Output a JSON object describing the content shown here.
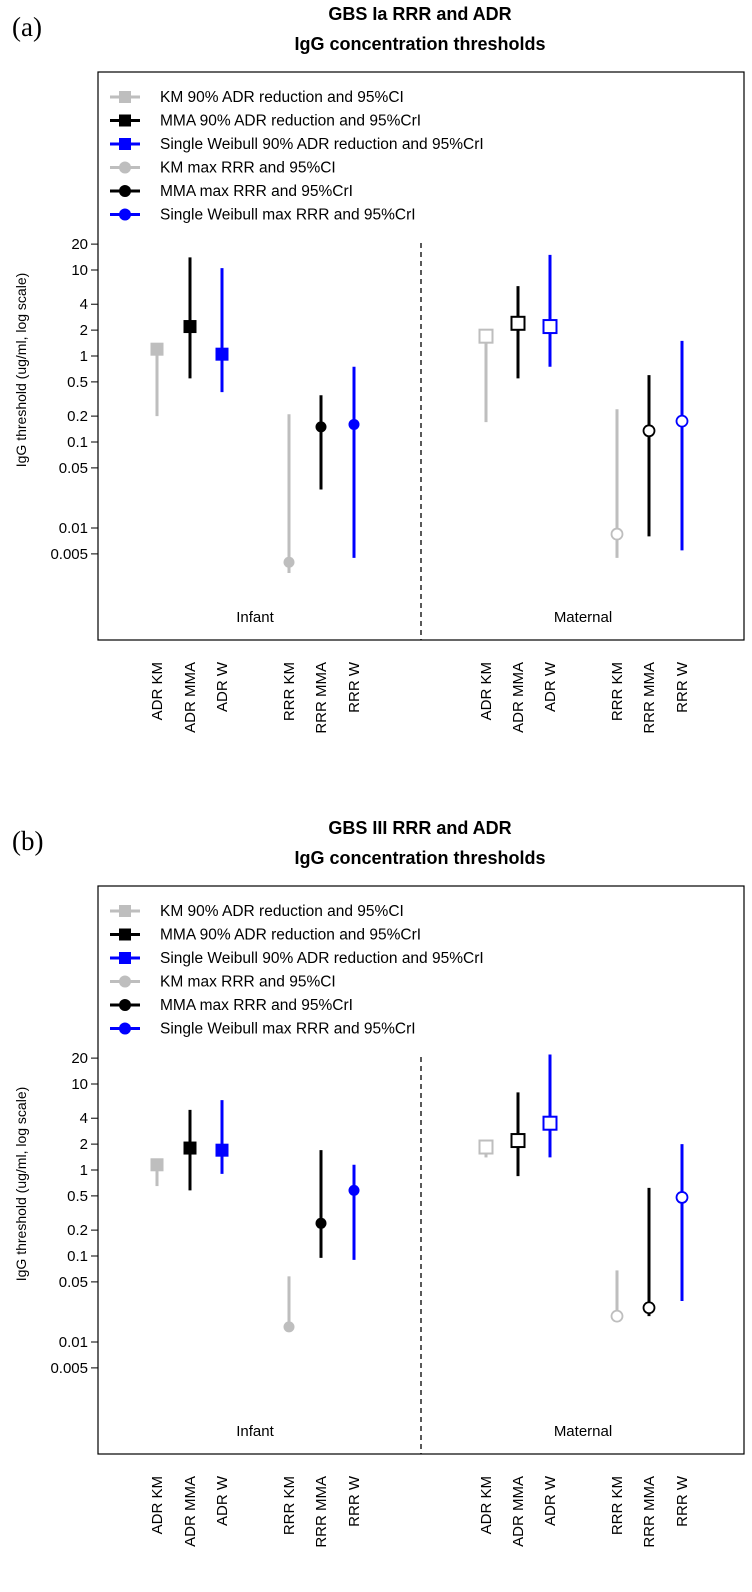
{
  "chart_data": [
    {
      "panel_label": "(a)",
      "type": "scatter",
      "title": "GBS Ia RRR and ADR",
      "subtitle": "IgG concentration thresholds",
      "ylabel": "IgG threshold (ug/ml, log scale)",
      "yscale": "log",
      "ylim": [
        0.0005,
        50
      ],
      "yticks": [
        {
          "value": 20,
          "label": "20"
        },
        {
          "value": 10,
          "label": "10"
        },
        {
          "value": 4,
          "label": "4"
        },
        {
          "value": 2,
          "label": "2"
        },
        {
          "value": 1,
          "label": "1"
        },
        {
          "value": 0.5,
          "label": "0.5"
        },
        {
          "value": 0.2,
          "label": "0.2"
        },
        {
          "value": 0.1,
          "label": "0.1"
        },
        {
          "value": 0.05,
          "label": "0.05"
        },
        {
          "value": 0.01,
          "label": "0.01"
        },
        {
          "value": 0.005,
          "label": "0.005"
        }
      ],
      "groups": [
        "Infant",
        "Maternal"
      ],
      "legend": [
        {
          "label": "KM 90% ADR reduction and 95%CI",
          "color": "#bebebe",
          "marker": "square"
        },
        {
          "label": "MMA 90% ADR reduction and 95%CrI",
          "color": "#000000",
          "marker": "square"
        },
        {
          "label": "Single Weibull 90% ADR reduction and 95%CrI",
          "color": "#0000ff",
          "marker": "square"
        },
        {
          "label": "KM max RRR and 95%CI",
          "color": "#bebebe",
          "marker": "circle"
        },
        {
          "label": "MMA max RRR and 95%CrI",
          "color": "#000000",
          "marker": "circle"
        },
        {
          "label": "Single Weibull max RRR and 95%CrI",
          "color": "#0000ff",
          "marker": "circle"
        }
      ],
      "points": [
        {
          "group": "Infant",
          "category": "ADR KM",
          "color": "#bebebe",
          "marker": "square",
          "filled": true,
          "value": 1.2,
          "lower": 0.2,
          "upper": 1.2
        },
        {
          "group": "Infant",
          "category": "ADR MMA",
          "color": "#000000",
          "marker": "square",
          "filled": true,
          "value": 2.2,
          "lower": 0.55,
          "upper": 14
        },
        {
          "group": "Infant",
          "category": "ADR W",
          "color": "#0000ff",
          "marker": "square",
          "filled": true,
          "value": 1.05,
          "lower": 0.38,
          "upper": 10.5
        },
        {
          "group": "Infant",
          "category": "RRR KM",
          "color": "#bebebe",
          "marker": "circle",
          "filled": true,
          "value": 0.004,
          "lower": 0.003,
          "upper": 0.21
        },
        {
          "group": "Infant",
          "category": "RRR MMA",
          "color": "#000000",
          "marker": "circle",
          "filled": true,
          "value": 0.15,
          "lower": 0.028,
          "upper": 0.35
        },
        {
          "group": "Infant",
          "category": "RRR W",
          "color": "#0000ff",
          "marker": "circle",
          "filled": true,
          "value": 0.16,
          "lower": 0.0045,
          "upper": 0.75
        },
        {
          "group": "Maternal",
          "category": "ADR KM",
          "color": "#bebebe",
          "marker": "square",
          "filled": false,
          "value": 1.7,
          "lower": 0.17,
          "upper": 1.7
        },
        {
          "group": "Maternal",
          "category": "ADR MMA",
          "color": "#000000",
          "marker": "square",
          "filled": false,
          "value": 2.4,
          "lower": 0.55,
          "upper": 6.5
        },
        {
          "group": "Maternal",
          "category": "ADR W",
          "color": "#0000ff",
          "marker": "square",
          "filled": false,
          "value": 2.2,
          "lower": 0.75,
          "upper": 15
        },
        {
          "group": "Maternal",
          "category": "RRR KM",
          "color": "#bebebe",
          "marker": "circle",
          "filled": false,
          "value": 0.0085,
          "lower": 0.0045,
          "upper": 0.24
        },
        {
          "group": "Maternal",
          "category": "RRR MMA",
          "color": "#000000",
          "marker": "circle",
          "filled": false,
          "value": 0.135,
          "lower": 0.008,
          "upper": 0.6
        },
        {
          "group": "Maternal",
          "category": "RRR W",
          "color": "#0000ff",
          "marker": "circle",
          "filled": false,
          "value": 0.175,
          "lower": 0.0055,
          "upper": 1.5
        }
      ],
      "categories": {
        "Infant": [
          "ADR KM",
          "ADR MMA",
          "ADR W",
          "RRR KM",
          "RRR MMA",
          "RRR W"
        ],
        "Maternal": [
          "ADR KM",
          "ADR MMA",
          "ADR W",
          "RRR KM",
          "RRR MMA",
          "RRR W"
        ]
      }
    },
    {
      "panel_label": "(b)",
      "type": "scatter",
      "title": "GBS III RRR and ADR",
      "subtitle": "IgG concentration thresholds",
      "ylabel": "IgG threshold (ug/ml, log scale)",
      "yscale": "log",
      "ylim": [
        0.0005,
        50
      ],
      "yticks": [
        {
          "value": 20,
          "label": "20"
        },
        {
          "value": 10,
          "label": "10"
        },
        {
          "value": 4,
          "label": "4"
        },
        {
          "value": 2,
          "label": "2"
        },
        {
          "value": 1,
          "label": "1"
        },
        {
          "value": 0.5,
          "label": "0.5"
        },
        {
          "value": 0.2,
          "label": "0.2"
        },
        {
          "value": 0.1,
          "label": "0.1"
        },
        {
          "value": 0.05,
          "label": "0.05"
        },
        {
          "value": 0.01,
          "label": "0.01"
        },
        {
          "value": 0.005,
          "label": "0.005"
        }
      ],
      "groups": [
        "Infant",
        "Maternal"
      ],
      "legend": [
        {
          "label": "KM 90% ADR reduction and 95%CI",
          "color": "#bebebe",
          "marker": "square"
        },
        {
          "label": "MMA 90% ADR reduction and 95%CrI",
          "color": "#000000",
          "marker": "square"
        },
        {
          "label": "Single Weibull 90% ADR reduction and 95%CrI",
          "color": "#0000ff",
          "marker": "square"
        },
        {
          "label": "KM max RRR and 95%CI",
          "color": "#bebebe",
          "marker": "circle"
        },
        {
          "label": "MMA max RRR and 95%CrI",
          "color": "#000000",
          "marker": "circle"
        },
        {
          "label": "Single Weibull max RRR and 95%CrI",
          "color": "#0000ff",
          "marker": "circle"
        }
      ],
      "points": [
        {
          "group": "Infant",
          "category": "ADR KM",
          "color": "#bebebe",
          "marker": "square",
          "filled": true,
          "value": 1.15,
          "lower": 0.65,
          "upper": 1.15
        },
        {
          "group": "Infant",
          "category": "ADR MMA",
          "color": "#000000",
          "marker": "square",
          "filled": true,
          "value": 1.8,
          "lower": 0.58,
          "upper": 5.0
        },
        {
          "group": "Infant",
          "category": "ADR W",
          "color": "#0000ff",
          "marker": "square",
          "filled": true,
          "value": 1.7,
          "lower": 0.9,
          "upper": 6.5
        },
        {
          "group": "Infant",
          "category": "RRR KM",
          "color": "#bebebe",
          "marker": "circle",
          "filled": true,
          "value": 0.015,
          "lower": 0.015,
          "upper": 0.058
        },
        {
          "group": "Infant",
          "category": "RRR MMA",
          "color": "#000000",
          "marker": "circle",
          "filled": true,
          "value": 0.24,
          "lower": 0.095,
          "upper": 1.7
        },
        {
          "group": "Infant",
          "category": "RRR W",
          "color": "#0000ff",
          "marker": "circle",
          "filled": true,
          "value": 0.58,
          "lower": 0.09,
          "upper": 1.15
        },
        {
          "group": "Maternal",
          "category": "ADR KM",
          "color": "#bebebe",
          "marker": "square",
          "filled": false,
          "value": 1.85,
          "lower": 1.4,
          "upper": 1.85
        },
        {
          "group": "Maternal",
          "category": "ADR MMA",
          "color": "#000000",
          "marker": "square",
          "filled": false,
          "value": 2.2,
          "lower": 0.85,
          "upper": 8.0
        },
        {
          "group": "Maternal",
          "category": "ADR W",
          "color": "#0000ff",
          "marker": "square",
          "filled": false,
          "value": 3.5,
          "lower": 1.4,
          "upper": 22
        },
        {
          "group": "Maternal",
          "category": "RRR KM",
          "color": "#bebebe",
          "marker": "circle",
          "filled": false,
          "value": 0.02,
          "lower": 0.02,
          "upper": 0.068
        },
        {
          "group": "Maternal",
          "category": "RRR MMA",
          "color": "#000000",
          "marker": "circle",
          "filled": false,
          "value": 0.025,
          "lower": 0.02,
          "upper": 0.62
        },
        {
          "group": "Maternal",
          "category": "RRR W",
          "color": "#0000ff",
          "marker": "circle",
          "filled": false,
          "value": 0.48,
          "lower": 0.03,
          "upper": 2.0
        }
      ],
      "categories": {
        "Infant": [
          "ADR KM",
          "ADR MMA",
          "ADR W",
          "RRR KM",
          "RRR MMA",
          "RRR W"
        ],
        "Maternal": [
          "ADR KM",
          "ADR MMA",
          "ADR W",
          "RRR KM",
          "RRR MMA",
          "RRR W"
        ]
      }
    }
  ]
}
